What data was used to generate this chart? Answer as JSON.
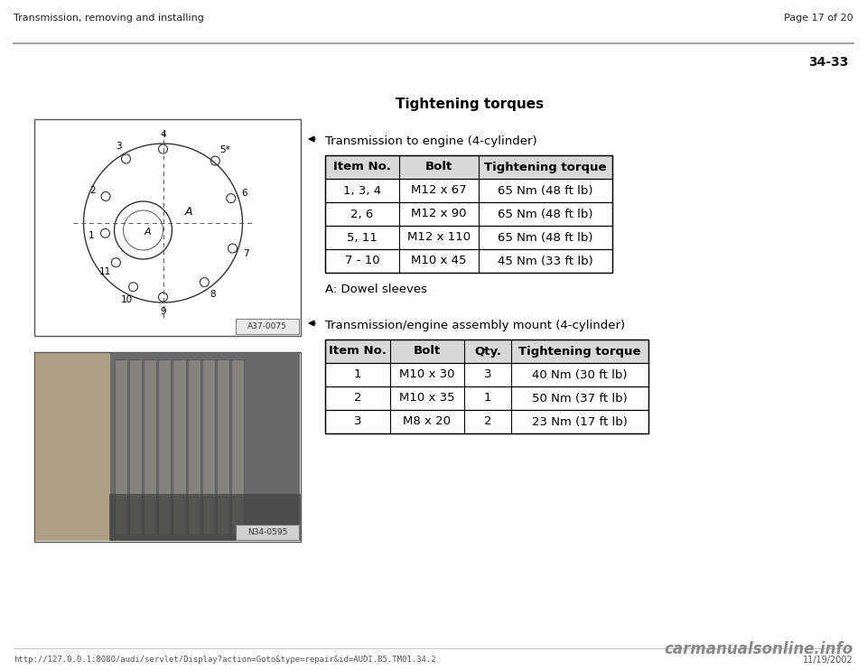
{
  "bg_color": "#ffffff",
  "header_left": "Transmission, removing and installing",
  "header_right": "Page 17 of 20",
  "page_number": "34-33",
  "section_title": "Tightening torques",
  "section1_bullet": "Transmission to engine (4-cylinder)",
  "section1_note": "A: Dowel sleeves",
  "table1_headers": [
    "Item No.",
    "Bolt",
    "Tightening torque"
  ],
  "table1_rows": [
    [
      "1, 3, 4",
      "M12 x 67",
      "65 Nm (48 ft lb)"
    ],
    [
      "2, 6",
      "M12 x 90",
      "65 Nm (48 ft lb)"
    ],
    [
      "5, 11",
      "M12 x 110",
      "65 Nm (48 ft lb)"
    ],
    [
      "7 - 10",
      "M10 x 45",
      "45 Nm (33 ft lb)"
    ]
  ],
  "section2_bullet": "Transmission/engine assembly mount (4-cylinder)",
  "table2_headers": [
    "Item No.",
    "Bolt",
    "Qty.",
    "Tightening torque"
  ],
  "table2_rows": [
    [
      "1",
      "M10 x 30",
      "3",
      "40 Nm (30 ft lb)"
    ],
    [
      "2",
      "M10 x 35",
      "1",
      "50 Nm (37 ft lb)"
    ],
    [
      "3",
      "M8 x 20",
      "2",
      "23 Nm (17 ft lb)"
    ]
  ],
  "footer_url": "http://127.0.0.1:8080/audi/servlet/Display?action=Goto&type=repair&id=AUDI.B5.TM01.34.2",
  "footer_date": "11/19/2002",
  "footer_watermark": "carmanualsonline.info",
  "table_header_color": "#d8d8d8",
  "table_border_color": "#000000",
  "text_color": "#000000",
  "img1_stamp": "A37-0075",
  "img2_stamp": "N34-0595"
}
